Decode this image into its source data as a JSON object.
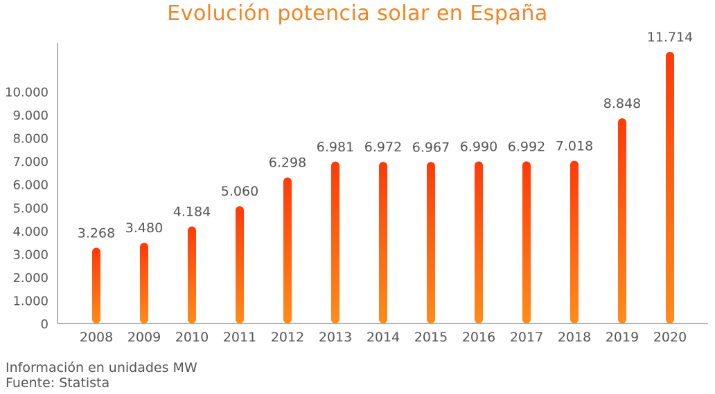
{
  "chart_data": {
    "type": "bar",
    "title": "Evolución potencia solar en España",
    "categories": [
      "2008",
      "2009",
      "2010",
      "2011",
      "2012",
      "2013",
      "2014",
      "2015",
      "2016",
      "2017",
      "2018",
      "2019",
      "2020"
    ],
    "values": [
      3268,
      3480,
      4184,
      5060,
      6298,
      6981,
      6972,
      6967,
      6990,
      6992,
      7018,
      8848,
      11714
    ],
    "value_labels": [
      "3.268",
      "3.480",
      "4.184",
      "5.060",
      "6.298",
      "6.981",
      "6.972",
      "6.967",
      "6.990",
      "6.992",
      "7.018",
      "8.848",
      "11.714"
    ],
    "y_ticks": [
      0,
      1000,
      2000,
      3000,
      4000,
      5000,
      6000,
      7000,
      8000,
      9000,
      10000
    ],
    "y_tick_labels": [
      "0",
      "1.000",
      "2.000",
      "3.000",
      "4.000",
      "5.000",
      "6.000",
      "7.000",
      "8.000",
      "9.000",
      "10.000"
    ],
    "ylim": [
      0,
      12000
    ],
    "grid": false,
    "legend": "none",
    "xlabel": "",
    "ylabel": "",
    "colors": {
      "bar_top": "#ff3a0a",
      "bar_bottom": "#ff8c1a",
      "title": "#f5821f",
      "text": "#555555",
      "axis": "#9a9a9a"
    }
  },
  "footer": {
    "units": "Información en unidades MW",
    "source": "Fuente: Statista"
  }
}
